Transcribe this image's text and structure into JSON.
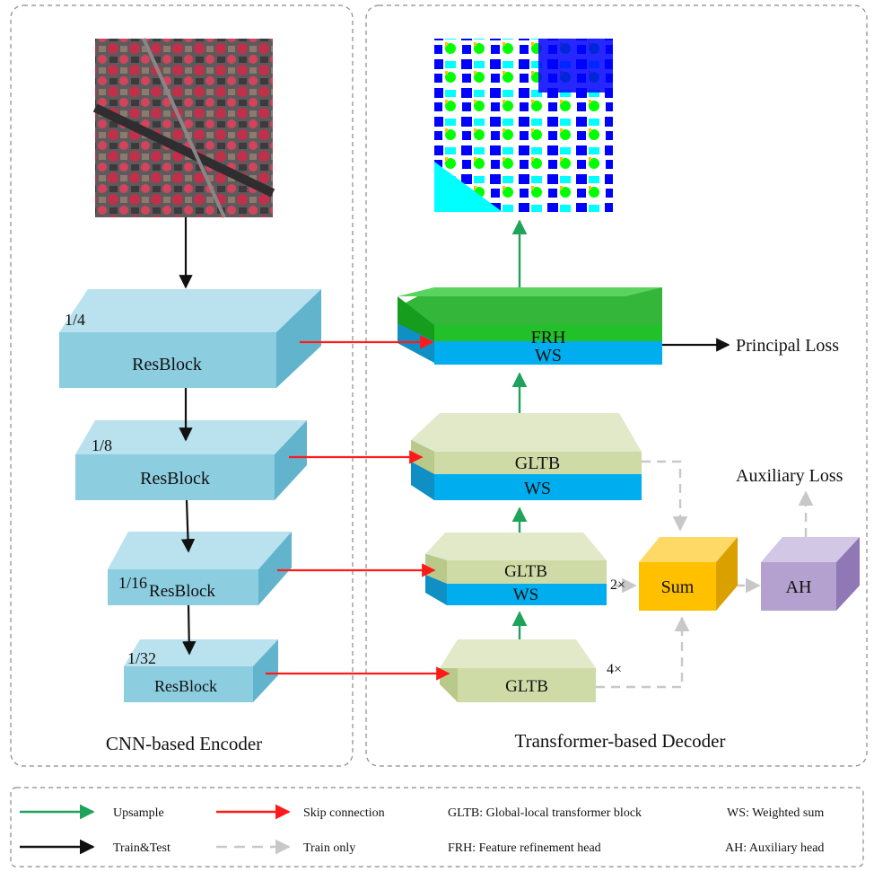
{
  "encoder": {
    "title": "CNN-based Encoder",
    "blocks": [
      {
        "label": "ResBlock",
        "scale": "1/4"
      },
      {
        "label": "ResBlock",
        "scale": "1/8"
      },
      {
        "label": "ResBlock",
        "scale": "1/16"
      },
      {
        "label": "ResBlock",
        "scale": "1/32"
      }
    ]
  },
  "decoder": {
    "title": "Transformer-based Decoder",
    "frh": {
      "top_label": "FRH",
      "bottom_label": "WS"
    },
    "gltb1": {
      "top_label": "GLTB",
      "bottom_label": "WS"
    },
    "gltb2": {
      "top_label": "GLTB",
      "bottom_label": "WS"
    },
    "gltb3": {
      "label": "GLTB"
    },
    "sum": {
      "label": "Sum"
    },
    "ah": {
      "label": "AH"
    },
    "factor_2x": "2×",
    "factor_4x": "4×"
  },
  "losses": {
    "principal": "Principal Loss",
    "auxiliary": "Auxiliary Loss"
  },
  "images": {
    "input": "input-aerial-image",
    "output": "segmentation-output-map"
  },
  "legend": {
    "upsample": "Upsample",
    "skip": "Skip connection",
    "train_test": "Train&Test",
    "train_only": "Train only",
    "gltb": "GLTB: Global-local transformer block",
    "frh": "FRH: Feature refinement head",
    "ws": "WS: Weighted sum",
    "ah": "AH: Auxiliary head"
  },
  "colors": {
    "upsample": "#1fa35a",
    "skip": "#ff1a1a",
    "train_test": "#111111",
    "train_only": "#c8c8c8",
    "resblock_front": "#8ccde0",
    "resblock_top": "#b9e1ee",
    "resblock_side": "#62b3cc",
    "frh_green": "#22c12a",
    "ws_blue": "#00aeef",
    "gltb_green": "#cfdba6",
    "sum_orange": "#ffc000",
    "ah_purple": "#b4a1cf"
  }
}
